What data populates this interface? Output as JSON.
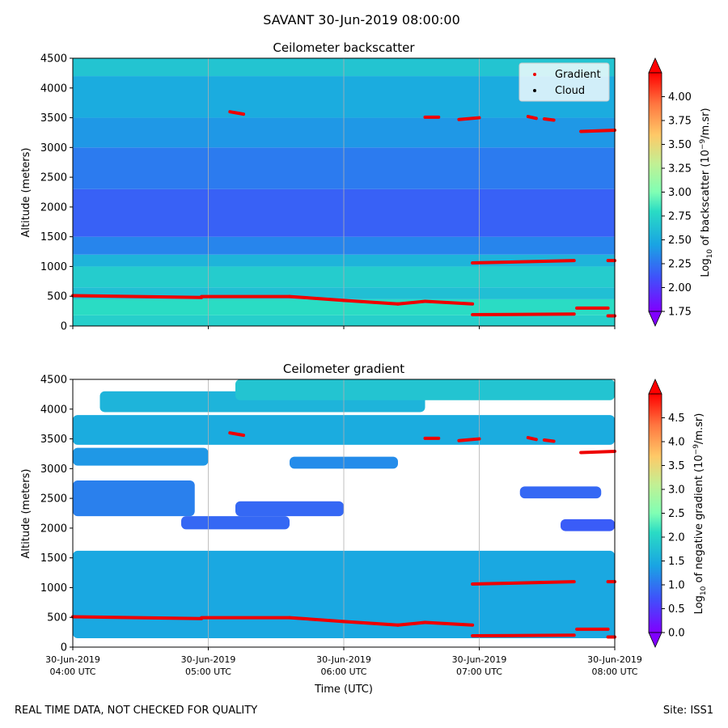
{
  "figure": {
    "suptitle": "SAVANT 30-Jun-2019 08:00:00",
    "footer_left": "REAL TIME DATA, NOT CHECKED FOR QUALITY",
    "footer_right": "Site: ISS1",
    "xlabel": "Time (UTC)",
    "x_ticks": [
      {
        "date": "30-Jun-2019",
        "time": "04:00 UTC",
        "hour": 4
      },
      {
        "date": "30-Jun-2019",
        "time": "05:00 UTC",
        "hour": 5
      },
      {
        "date": "30-Jun-2019",
        "time": "06:00 UTC",
        "hour": 6
      },
      {
        "date": "30-Jun-2019",
        "time": "07:00 UTC",
        "hour": 7
      },
      {
        "date": "30-Jun-2019",
        "time": "08:00 UTC",
        "hour": 8
      }
    ]
  },
  "chart_data": [
    {
      "type": "heatmap",
      "title": "Ceilometer backscatter",
      "ylabel": "Altitude (meters)",
      "xlim": [
        4,
        8
      ],
      "ylim": [
        0,
        4500
      ],
      "y_ticks": [
        "0",
        "500",
        "1000",
        "1500",
        "2000",
        "2500",
        "3000",
        "3500",
        "4000",
        "4500"
      ],
      "colorbar": {
        "label_prefix": "Log",
        "label_sub": "10",
        "label_mid": " of backscatter (10",
        "label_sup": "−9",
        "label_suffix": "/m.sr)",
        "range": [
          1.75,
          4.25
        ],
        "ticks": [
          "1.75",
          "2.00",
          "2.25",
          "2.50",
          "2.75",
          "3.00",
          "3.25",
          "3.50",
          "3.75",
          "4.00"
        ]
      },
      "legend": {
        "position": "top-right",
        "entries": [
          {
            "label": "Gradient",
            "marker": "red-dot"
          },
          {
            "label": "Cloud",
            "marker": "black-dot"
          }
        ]
      },
      "profile_bands": [
        {
          "alt_from": 0,
          "alt_to": 180,
          "value": 2.72
        },
        {
          "alt_from": 180,
          "alt_to": 450,
          "value": 2.8
        },
        {
          "alt_from": 450,
          "alt_to": 650,
          "value": 2.62
        },
        {
          "alt_from": 650,
          "alt_to": 1000,
          "value": 2.7
        },
        {
          "alt_from": 1000,
          "alt_to": 1200,
          "value": 2.55
        },
        {
          "alt_from": 1200,
          "alt_to": 1500,
          "value": 2.32
        },
        {
          "alt_from": 1500,
          "alt_to": 2300,
          "value": 2.17
        },
        {
          "alt_from": 2300,
          "alt_to": 3000,
          "value": 2.28
        },
        {
          "alt_from": 3000,
          "alt_to": 3500,
          "value": 2.4
        },
        {
          "alt_from": 3500,
          "alt_to": 4200,
          "value": 2.5
        },
        {
          "alt_from": 4200,
          "alt_to": 4500,
          "value": 2.65
        }
      ]
    },
    {
      "type": "heatmap",
      "title": "Ceilometer gradient",
      "ylabel": "Altitude (meters)",
      "xlim": [
        4,
        8
      ],
      "ylim": [
        0,
        4500
      ],
      "y_ticks": [
        "0",
        "500",
        "1000",
        "1500",
        "2000",
        "2500",
        "3000",
        "3500",
        "4000",
        "4500"
      ],
      "colorbar": {
        "label_prefix": "Log",
        "label_sub": "10",
        "label_mid": " of negative gradient (10",
        "label_sup": "−9",
        "label_suffix": "/m.sr)",
        "range": [
          0,
          5
        ],
        "ticks": [
          "0.0",
          "0.5",
          "1.0",
          "1.5",
          "2.0",
          "2.5",
          "3.0",
          "3.5",
          "4.0",
          "4.5"
        ]
      },
      "layers": [
        {
          "t0": 4.0,
          "t1": 8.0,
          "alt_lo": 150,
          "alt_hi": 1620,
          "value": 1.45
        },
        {
          "t0": 4.2,
          "t1": 6.6,
          "alt_lo": 3950,
          "alt_hi": 4300,
          "value": 1.6
        },
        {
          "t0": 5.2,
          "t1": 8.0,
          "alt_lo": 4150,
          "alt_hi": 4500,
          "value": 1.8
        },
        {
          "t0": 4.0,
          "t1": 8.0,
          "alt_lo": 3400,
          "alt_hi": 3900,
          "value": 1.5
        },
        {
          "t0": 4.0,
          "t1": 5.0,
          "alt_lo": 3050,
          "alt_hi": 3350,
          "value": 1.3
        },
        {
          "t0": 5.6,
          "t1": 6.4,
          "alt_lo": 3000,
          "alt_hi": 3200,
          "value": 1.2
        },
        {
          "t0": 4.0,
          "t1": 4.9,
          "alt_lo": 2200,
          "alt_hi": 2800,
          "value": 1.1
        },
        {
          "t0": 4.8,
          "t1": 5.6,
          "alt_lo": 1980,
          "alt_hi": 2200,
          "value": 0.9
        },
        {
          "t0": 5.2,
          "t1": 6.0,
          "alt_lo": 2200,
          "alt_hi": 2450,
          "value": 0.9
        },
        {
          "t0": 7.3,
          "t1": 7.9,
          "alt_lo": 2500,
          "alt_hi": 2700,
          "value": 0.9
        },
        {
          "t0": 7.6,
          "t1": 8.0,
          "alt_lo": 1950,
          "alt_hi": 2150,
          "value": 0.8
        }
      ]
    }
  ],
  "gradient_points": [
    {
      "t0": 4.0,
      "t1": 4.95,
      "a0": 510,
      "a1": 480
    },
    {
      "t0": 4.95,
      "t1": 5.6,
      "a0": 495,
      "a1": 495
    },
    {
      "t0": 5.6,
      "t1": 6.0,
      "a0": 495,
      "a1": 430
    },
    {
      "t0": 6.0,
      "t1": 6.4,
      "a0": 430,
      "a1": 370
    },
    {
      "t0": 6.4,
      "t1": 6.6,
      "a0": 370,
      "a1": 415
    },
    {
      "t0": 6.6,
      "t1": 6.95,
      "a0": 415,
      "a1": 370
    },
    {
      "t0": 6.95,
      "t1": 7.7,
      "a0": 190,
      "a1": 200
    },
    {
      "t0": 7.72,
      "t1": 7.95,
      "a0": 300,
      "a1": 300
    },
    {
      "t0": 7.95,
      "t1": 8.0,
      "a0": 170,
      "a1": 170
    },
    {
      "t0": 6.95,
      "t1": 7.7,
      "a0": 1060,
      "a1": 1100
    },
    {
      "t0": 7.95,
      "t1": 8.0,
      "a0": 1100,
      "a1": 1100
    },
    {
      "t0": 5.16,
      "t1": 5.26,
      "a0": 3600,
      "a1": 3560
    },
    {
      "t0": 6.6,
      "t1": 6.7,
      "a0": 3510,
      "a1": 3510
    },
    {
      "t0": 6.85,
      "t1": 7.0,
      "a0": 3470,
      "a1": 3500
    },
    {
      "t0": 7.36,
      "t1": 7.42,
      "a0": 3520,
      "a1": 3490
    },
    {
      "t0": 7.48,
      "t1": 7.55,
      "a0": 3480,
      "a1": 3460
    },
    {
      "t0": 7.75,
      "t1": 8.0,
      "a0": 3270,
      "a1": 3290
    }
  ],
  "colors": {
    "red_marker": "#ee0000",
    "grid": "#b0b0b0"
  }
}
